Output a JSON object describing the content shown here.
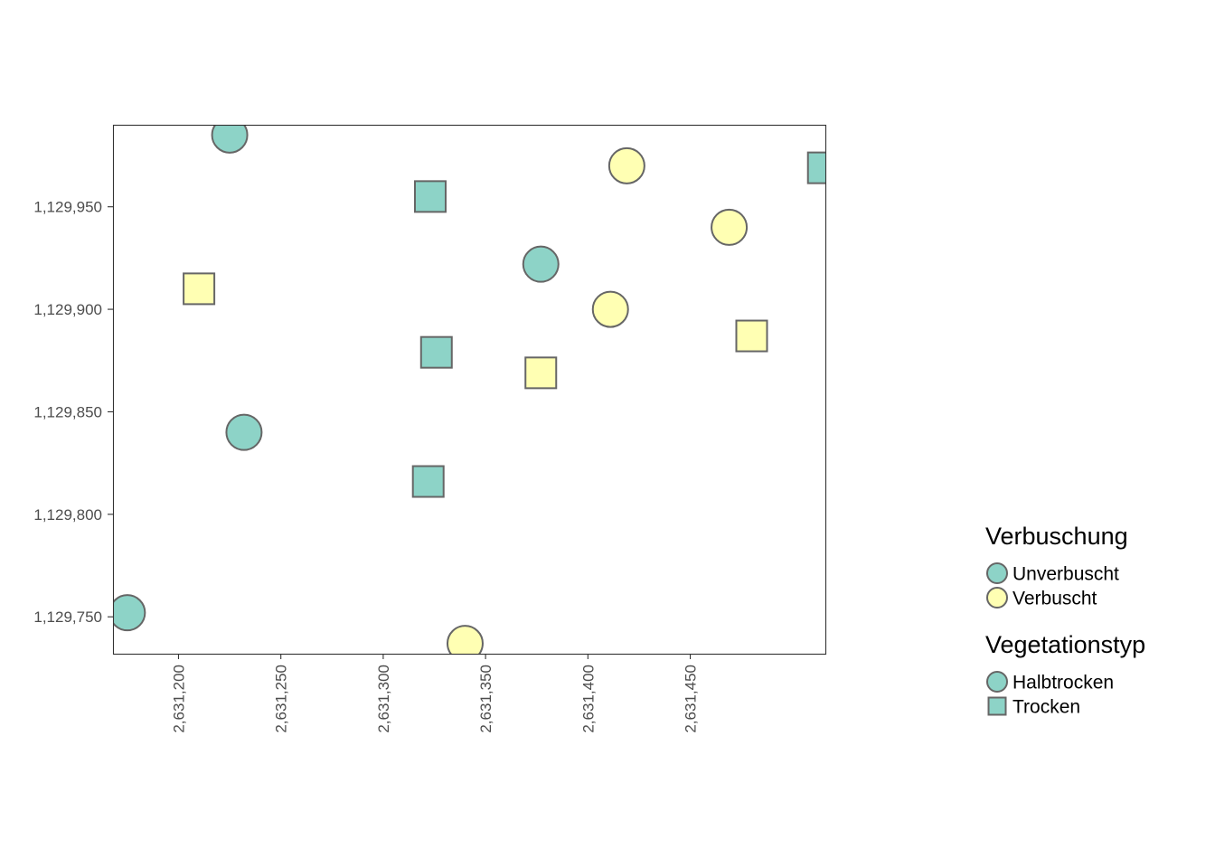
{
  "chart_data": {
    "type": "scatter",
    "title": "",
    "xlabel": "",
    "ylabel": "",
    "xlim": [
      2631168,
      2631516
    ],
    "ylim": [
      1129732,
      1129990
    ],
    "x_ticks": [
      2631200,
      2631250,
      2631300,
      2631350,
      2631400,
      2631450
    ],
    "x_tick_labels": [
      "2,631,200",
      "2,631,250",
      "2,631,300",
      "2,631,350",
      "2,631,400",
      "2,631,450"
    ],
    "y_ticks": [
      1129750,
      1129800,
      1129850,
      1129900,
      1129950
    ],
    "y_tick_labels": [
      "1,129,750",
      "1,129,800",
      "1,129,850",
      "1,129,900",
      "1,129,950"
    ],
    "grid": false,
    "legend_position": "right",
    "colors": {
      "Unverbuscht": "#8dd3c7",
      "Verbuscht": "#ffffb3",
      "stroke": "#666666"
    },
    "shapes": {
      "Halbtrocken": "circle",
      "Trocken": "square"
    },
    "points": [
      {
        "x": 2631225,
        "y": 1129985,
        "verbuschung": "Unverbuscht",
        "vegetationstyp": "Halbtrocken"
      },
      {
        "x": 2631175,
        "y": 1129752,
        "verbuschung": "Unverbuscht",
        "vegetationstyp": "Halbtrocken"
      },
      {
        "x": 2631232,
        "y": 1129840,
        "verbuschung": "Unverbuscht",
        "vegetationstyp": "Halbtrocken"
      },
      {
        "x": 2631377,
        "y": 1129922,
        "verbuschung": "Unverbuscht",
        "vegetationstyp": "Halbtrocken"
      },
      {
        "x": 2631323,
        "y": 1129955,
        "verbuschung": "Unverbuscht",
        "vegetationstyp": "Trocken"
      },
      {
        "x": 2631326,
        "y": 1129879,
        "verbuschung": "Unverbuscht",
        "vegetationstyp": "Trocken"
      },
      {
        "x": 2631322,
        "y": 1129816,
        "verbuschung": "Unverbuscht",
        "vegetationstyp": "Trocken"
      },
      {
        "x": 2631515,
        "y": 1129969,
        "verbuschung": "Unverbuscht",
        "vegetationstyp": "Trocken"
      },
      {
        "x": 2631419,
        "y": 1129970,
        "verbuschung": "Verbuscht",
        "vegetationstyp": "Halbtrocken"
      },
      {
        "x": 2631469,
        "y": 1129940,
        "verbuschung": "Verbuscht",
        "vegetationstyp": "Halbtrocken"
      },
      {
        "x": 2631411,
        "y": 1129900,
        "verbuschung": "Verbuscht",
        "vegetationstyp": "Halbtrocken"
      },
      {
        "x": 2631340,
        "y": 1129737,
        "verbuschung": "Verbuscht",
        "vegetationstyp": "Halbtrocken"
      },
      {
        "x": 2631210,
        "y": 1129910,
        "verbuschung": "Verbuscht",
        "vegetationstyp": "Trocken"
      },
      {
        "x": 2631377,
        "y": 1129869,
        "verbuschung": "Verbuscht",
        "vegetationstyp": "Trocken"
      },
      {
        "x": 2631480,
        "y": 1129887,
        "verbuschung": "Verbuscht",
        "vegetationstyp": "Trocken"
      }
    ],
    "legend": [
      {
        "title": "Verbuschung",
        "entries": [
          {
            "label": "Unverbuscht",
            "shape": "circle",
            "color": "#8dd3c7"
          },
          {
            "label": "Verbuscht",
            "shape": "circle",
            "color": "#ffffb3"
          }
        ]
      },
      {
        "title": "Vegetationstyp",
        "entries": [
          {
            "label": "Halbtrocken",
            "shape": "circle",
            "color": "#8dd3c7"
          },
          {
            "label": "Trocken",
            "shape": "square",
            "color": "#8dd3c7"
          }
        ]
      }
    ]
  }
}
